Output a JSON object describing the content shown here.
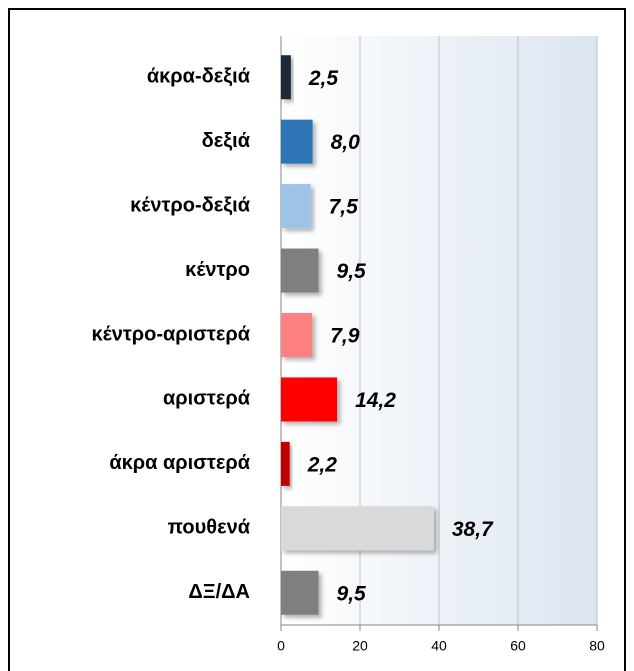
{
  "chart_data": {
    "type": "barh",
    "categories": [
      "άκρα-δεξιά",
      "δεξιά",
      "κέντρο-δεξιά",
      "κέντρο",
      "κέντρο-αριστερά",
      "αριστερά",
      "άκρα αριστερά",
      "πουθενά",
      "ΔΞ/ΔΑ"
    ],
    "values": [
      2.5,
      8.0,
      7.5,
      9.5,
      7.9,
      14.2,
      2.2,
      38.7,
      9.5
    ],
    "value_labels": [
      "2,5",
      "8,0",
      "7,5",
      "9,5",
      "7,9",
      "14,2",
      "2,2",
      "38,7",
      "9,5"
    ],
    "colors": [
      "#1f2a38",
      "#2e75b6",
      "#9dc3e6",
      "#7f7f7f",
      "#ff8080",
      "#ff0000",
      "#c00000",
      "#d9d9d9",
      "#7f7f7f"
    ],
    "xlim": [
      0,
      80
    ],
    "xticks": [
      0,
      20,
      40,
      60,
      80
    ],
    "grid": true
  }
}
